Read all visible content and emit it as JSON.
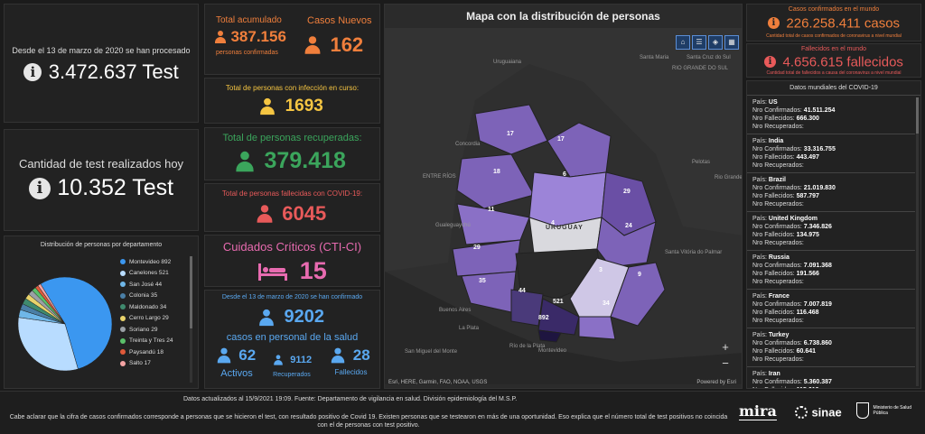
{
  "colors": {
    "orange": "#f07f3c",
    "yellow": "#f5c542",
    "green": "#3ba55c",
    "red": "#e85a5a",
    "pink": "#e86bb0",
    "blue": "#5aa8f0",
    "map_dark": "#2f2f2f"
  },
  "tests": {
    "since": "Desde el 13 de marzo de 2020 se han procesado",
    "total": "3.472.637 Test"
  },
  "today": {
    "label": "Cantidad de test realizados hoy",
    "total": "10.352 Test"
  },
  "pie": {
    "title": "Distribución de personas por departamento",
    "items": [
      {
        "label": "Montevideo 892",
        "value": 892,
        "color": "#3b97f0"
      },
      {
        "label": "Canelones 521",
        "value": 521,
        "color": "#b8dcff"
      },
      {
        "label": "San José 44",
        "value": 44,
        "color": "#6fb7e8"
      },
      {
        "label": "Colonia 35",
        "value": 35,
        "color": "#4a7fa6"
      },
      {
        "label": "Maldonado 34",
        "value": 34,
        "color": "#3f8a6e"
      },
      {
        "label": "Cerro Largo 29",
        "value": 29,
        "color": "#e9d36b"
      },
      {
        "label": "Soriano 29",
        "value": 29,
        "color": "#9aa0a6"
      },
      {
        "label": "Treinta y Tres 24",
        "value": 24,
        "color": "#5bbf6a"
      },
      {
        "label": "Paysandú 18",
        "value": 18,
        "color": "#e05a3a"
      },
      {
        "label": "Salto 17",
        "value": 17,
        "color": "#f4a3a3"
      }
    ]
  },
  "acumulado": {
    "label": "Total acumulado",
    "value": "387.156",
    "sub": "personas confirmadas"
  },
  "nuevos": {
    "label": "Casos Nuevos",
    "value": "162"
  },
  "curso": {
    "label": "Total de personas con infección en curso:",
    "value": "1693"
  },
  "recuperadas": {
    "label": "Total de personas recuperadas:",
    "value": "379.418"
  },
  "fallecidas": {
    "label": "Total de personas fallecidas con COVID-19:",
    "value": "6045"
  },
  "cti": {
    "label": "Cuidados Críticos (CTI-CI)",
    "value": "15"
  },
  "salud": {
    "since": "Desde el 13 de marzo de 2020 se han confirmado",
    "value": "9202",
    "label": "casos en personal de la salud",
    "activos_value": "62",
    "activos_label": "Activos",
    "recuperados_value": "9112",
    "recuperados_label": "Recuperados",
    "fallecidos_value": "28",
    "fallecidos_label": "Fallecidos"
  },
  "map": {
    "title": "Mapa con la distribución de personas",
    "attribution": "Esri, HERE, Garmin, FAO, NOAA, USGS",
    "powered": "Powered by Esri",
    "country_label": "URUGUAY",
    "zoom_in": "+",
    "zoom_out": "−",
    "places": [
      "Uruguaiana",
      "Santa Maria",
      "Santa Cruz do Sul",
      "RIO GRANDE DO SUL",
      "Pelotas",
      "Rio Grande",
      "Concordia",
      "ENTRE RÍOS",
      "Gualeguaychú",
      "Buenos Aires",
      "La Plata",
      "Río de la Plata",
      "San Miguel del Monte",
      "Montevideo",
      "Santa Vitória do Palmar"
    ],
    "numbers": [
      "17",
      "17",
      "18",
      "6",
      "29",
      "11",
      "4",
      "24",
      "29",
      "3",
      "35",
      "9",
      "44",
      "521",
      "34",
      "892"
    ]
  },
  "world": {
    "confirmed_label": "Casos confirmados en el mundo",
    "confirmed_value": "226.258.411 casos",
    "confirmed_sub": "Cantidad total de casos confirmados de coronavirus a nivel mundial",
    "deaths_label": "Fallecidos en el mundo",
    "deaths_value": "4.656.615 fallecidos",
    "deaths_sub": "Cantidad total de fallecidos a causa del coronavirus a nivel mundial"
  },
  "worldlist": {
    "title": "Datos mundiales del COVID-19",
    "pais": "País:",
    "confirmados": "Nro Confirmados:",
    "fallecidos": "Nro Fallecidos:",
    "recuperados": "Nro Recuperados:",
    "countries": [
      {
        "name": "US",
        "confirmed": "41.511.254",
        "deaths": "666.300"
      },
      {
        "name": "India",
        "confirmed": "33.316.755",
        "deaths": "443.497"
      },
      {
        "name": "Brazil",
        "confirmed": "21.019.830",
        "deaths": "587.797"
      },
      {
        "name": "United Kingdom",
        "confirmed": "7.346.826",
        "deaths": "134.975"
      },
      {
        "name": "Russia",
        "confirmed": "7.091.368",
        "deaths": "191.566"
      },
      {
        "name": "France",
        "confirmed": "7.007.819",
        "deaths": "116.468"
      },
      {
        "name": "Turkey",
        "confirmed": "6.738.860",
        "deaths": "60.641"
      },
      {
        "name": "Iran",
        "confirmed": "5.360.387",
        "deaths": "115.619"
      }
    ]
  },
  "footer": {
    "update": "Datos actualizados al 15/9/2021 19:09. Fuente: Departamento de vigilancia en salud. División epidemiología del M.S.P.",
    "note": "Cabe aclarar que la cifra de casos confirmados corresponde a personas que se hicieron el test, con resultado positivo de Covid 19. Existen personas que se testearon en más de una oportunidad. Eso explica que el número total de test positivos no coincida con el de personas con test positivo.",
    "logo_mira": "mira",
    "logo_sinae": "sinae",
    "logo_msp": "Ministerio de Salud Pública"
  }
}
